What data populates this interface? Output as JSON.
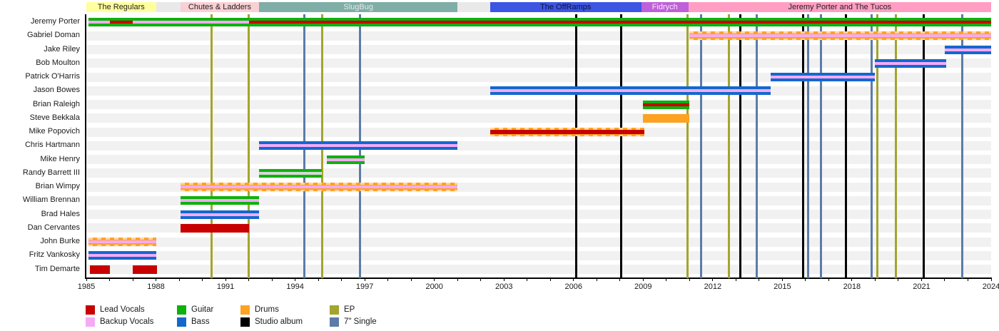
{
  "chart_data": {
    "type": "timeline",
    "x_axis": {
      "start": 1985,
      "end": 2024,
      "minor_tick_every": 1,
      "label_every": 3,
      "labels": [
        1985,
        1988,
        1991,
        1994,
        1997,
        2000,
        2003,
        2006,
        2009,
        2012,
        2015,
        2018,
        2021,
        2024
      ]
    },
    "colors": {
      "lead_vocals": "#C80000",
      "backup_vocals": "#F5AAF5",
      "guitar": "#0DB20D",
      "bass": "#1368CE",
      "drums": "#FDA221",
      "ep": "#A2A52E",
      "album": "#000000",
      "single": "#5B7CA8",
      "row_band": "#F1F1F1",
      "era_gap": "#E9E9E9",
      "stripe_gray": "#D8D8D8",
      "axis": "#000000"
    },
    "eras": [
      {
        "label": "The Regulars",
        "start": 1985.0,
        "end": 1988.0,
        "bg": "#FFFF9E",
        "fg": "#202020"
      },
      {
        "label": "Chutes & Ladders",
        "start": 1989.05,
        "end": 1992.45,
        "bg": "#F9D0D4",
        "fg": "#202020"
      },
      {
        "label": "SlugBug",
        "start": 1992.45,
        "end": 2001.0,
        "bg": "#7FAEA6",
        "fg": "#E8E8E8"
      },
      {
        "label": "The OffRamps",
        "start": 2002.4,
        "end": 2008.92,
        "bg": "#3D55E3",
        "fg": "#0B103C"
      },
      {
        "label": "Fidrych",
        "start": 2008.92,
        "end": 2010.95,
        "bg": "#BF5FD9",
        "fg": "#F8E8FC"
      },
      {
        "label": "Jeremy Porter and The Tucos",
        "start": 2010.95,
        "end": 2024.1,
        "bg": "#FF9EC2",
        "fg": "#202020"
      }
    ],
    "members": [
      {
        "name": "Jeremy Porter",
        "bars": [
          {
            "color_key": "guitar",
            "start": 1985.1,
            "end": 2024.1,
            "stripes": [
              {
                "color_key": "backup_vocals",
                "start": 1985.1,
                "end": 1986.0
              },
              {
                "color_key": "lead_vocals",
                "start": 1986.0,
                "end": 1987.0
              },
              {
                "color_key": "backup_vocals",
                "start": 1987.0,
                "end": 1992.0
              },
              {
                "color_key": "lead_vocals",
                "start": 1992.0,
                "end": 2024.1
              }
            ]
          }
        ]
      },
      {
        "name": "Gabriel Doman",
        "bars": [
          {
            "color_key": "drums",
            "dashed": true,
            "start": 2011.0,
            "end": 2024.1,
            "stripes": [
              {
                "color_key": "backup_vocals",
                "start": 2011.0,
                "end": 2024.1
              }
            ]
          }
        ]
      },
      {
        "name": "Jake Riley",
        "bars": [
          {
            "color_key": "bass",
            "start": 2022.0,
            "end": 2024.1,
            "stripes": [
              {
                "color_key": "backup_vocals",
                "start": 2022.0,
                "end": 2024.1
              }
            ]
          }
        ]
      },
      {
        "name": "Bob Moulton",
        "bars": [
          {
            "color_key": "bass",
            "start": 2019.0,
            "end": 2022.05,
            "stripes": [
              {
                "color_key": "backup_vocals",
                "start": 2019.0,
                "end": 2022.05
              }
            ]
          }
        ]
      },
      {
        "name": "Patrick O'Harris",
        "bars": [
          {
            "color_key": "bass",
            "start": 2014.5,
            "end": 2019.0,
            "stripes": [
              {
                "color_key": "backup_vocals",
                "start": 2014.5,
                "end": 2019.0
              }
            ]
          }
        ]
      },
      {
        "name": "Jason Bowes",
        "bars": [
          {
            "color_key": "bass",
            "start": 2002.4,
            "end": 2014.5,
            "stripes": [
              {
                "color_key": "backup_vocals",
                "start": 2002.4,
                "end": 2014.5
              }
            ]
          }
        ]
      },
      {
        "name": "Brian Raleigh",
        "bars": [
          {
            "color_key": "guitar",
            "start": 2009.0,
            "end": 2011.0,
            "stripes": [
              {
                "color_key": "lead_vocals",
                "start": 2009.0,
                "end": 2011.0
              }
            ]
          }
        ]
      },
      {
        "name": "Steve Bekkala",
        "bars": [
          {
            "color_key": "drums",
            "start": 2009.0,
            "end": 2011.0,
            "stripes": []
          }
        ]
      },
      {
        "name": "Mike Popovich",
        "bars": [
          {
            "color_key": "drums",
            "dashed": true,
            "start": 2002.4,
            "end": 2009.05,
            "stripe_height": 6,
            "stripes": [
              {
                "color_key": "lead_vocals",
                "start": 2002.4,
                "end": 2009.05
              }
            ]
          }
        ]
      },
      {
        "name": "Chris Hartmann",
        "bars": [
          {
            "color_key": "bass",
            "start": 1992.45,
            "end": 2001.0,
            "stripes": [
              {
                "color_key": "backup_vocals",
                "start": 1992.45,
                "end": 2001.0
              }
            ]
          }
        ]
      },
      {
        "name": "Mike Henry",
        "bars": [
          {
            "color_key": "guitar",
            "start": 1995.35,
            "end": 1997.0,
            "stripes": [
              {
                "color_key": "backup_vocals",
                "start": 1995.35,
                "end": 1997.0
              }
            ]
          }
        ]
      },
      {
        "name": "Randy Barrett III",
        "bars": [
          {
            "color_key": "guitar",
            "start": 1992.45,
            "end": 1995.15,
            "stripes": [
              {
                "color_key": "stripe_gray",
                "start": 1992.45,
                "end": 1995.15
              }
            ]
          }
        ]
      },
      {
        "name": "Brian Wimpy",
        "bars": [
          {
            "color_key": "drums",
            "dashed": true,
            "start": 1989.05,
            "end": 2001.0,
            "stripes": [
              {
                "color_key": "backup_vocals",
                "start": 1989.05,
                "end": 2001.0
              }
            ]
          }
        ]
      },
      {
        "name": "William Brennan",
        "bars": [
          {
            "color_key": "guitar",
            "start": 1989.05,
            "end": 1992.45,
            "stripes": [
              {
                "color_key": "backup_vocals",
                "start": 1989.05,
                "end": 1992.45
              }
            ]
          }
        ]
      },
      {
        "name": "Brad Hales",
        "bars": [
          {
            "color_key": "bass",
            "start": 1989.05,
            "end": 1992.45,
            "stripes": [
              {
                "color_key": "backup_vocals",
                "start": 1989.05,
                "end": 1992.45
              }
            ]
          }
        ]
      },
      {
        "name": "Dan Cervantes",
        "bars": [
          {
            "color_key": "lead_vocals",
            "start": 1989.05,
            "end": 1992.0,
            "stripes": []
          }
        ]
      },
      {
        "name": "John Burke",
        "bars": [
          {
            "color_key": "drums",
            "dashed": true,
            "start": 1985.1,
            "end": 1988.0,
            "stripes": [
              {
                "color_key": "backup_vocals",
                "start": 1985.1,
                "end": 1988.0
              }
            ]
          }
        ]
      },
      {
        "name": "Fritz Vankosky",
        "bars": [
          {
            "color_key": "bass",
            "start": 1985.1,
            "end": 1988.0,
            "stripes": [
              {
                "color_key": "backup_vocals",
                "start": 1985.1,
                "end": 1988.0
              }
            ]
          }
        ]
      },
      {
        "name": "Tim Demarte",
        "bars": [
          {
            "color_key": "lead_vocals",
            "start": 1985.15,
            "end": 1986.0,
            "stripes": []
          },
          {
            "color_key": "lead_vocals",
            "start": 1987.0,
            "end": 1988.05,
            "stripes": []
          }
        ]
      }
    ],
    "releases": [
      {
        "type": "album",
        "color_key": "album",
        "years": [
          2006.1,
          2008.05,
          2013.2,
          2015.9,
          2017.75,
          2021.1
        ]
      },
      {
        "type": "ep",
        "color_key": "ep",
        "years": [
          1990.4,
          1992.0,
          1995.15,
          2010.9,
          2012.7,
          2019.1,
          2019.9
        ]
      },
      {
        "type": "single",
        "color_key": "single",
        "years": [
          1994.4,
          1996.8,
          2011.5,
          2013.9,
          2016.1,
          2016.65,
          2018.85,
          2022.75
        ]
      }
    ],
    "legend": {
      "rows": [
        [
          {
            "label": "Lead Vocals",
            "color_key": "lead_vocals"
          },
          {
            "label": "Guitar",
            "color_key": "guitar"
          },
          {
            "label": "Drums",
            "color_key": "drums"
          },
          {
            "label": "EP",
            "color_key": "ep"
          }
        ],
        [
          {
            "label": "Backup Vocals",
            "color_key": "backup_vocals"
          },
          {
            "label": "Bass",
            "color_key": "bass"
          },
          {
            "label": "Studio album",
            "color_key": "album"
          },
          {
            "label": "7\" Single",
            "color_key": "single"
          }
        ]
      ]
    }
  }
}
